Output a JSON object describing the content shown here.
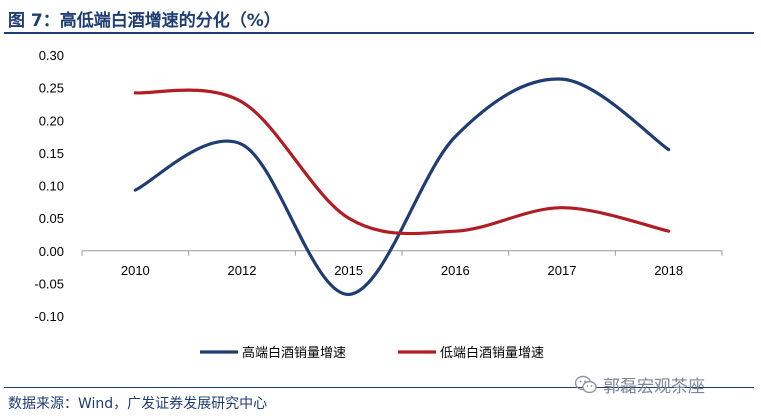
{
  "figure": {
    "title": "图 7：高低端白酒增速的分化（%）",
    "source": "数据来源：Wind，广发证券发展研究中心",
    "watermark": "郭磊宏观茶座",
    "watermark_icon": "wechat-icon"
  },
  "chart_data": {
    "type": "line",
    "categories": [
      "2010",
      "2012",
      "2015",
      "2016",
      "2017",
      "2018"
    ],
    "ylim": [
      -0.1,
      0.3
    ],
    "yticks": [
      "0.30",
      "0.25",
      "0.20",
      "0.15",
      "0.10",
      "0.05",
      "0.00",
      "-0.05",
      "-0.10"
    ],
    "grid": false,
    "legend_position": "bottom",
    "series": [
      {
        "name": "高端白酒销量增速",
        "color": "#1f3d73",
        "values": [
          0.093,
          0.163,
          -0.067,
          0.175,
          0.263,
          0.155
        ]
      },
      {
        "name": "低端白酒销量增速",
        "color": "#b01e23",
        "values": [
          0.242,
          0.228,
          0.05,
          0.03,
          0.066,
          0.03
        ]
      }
    ]
  }
}
